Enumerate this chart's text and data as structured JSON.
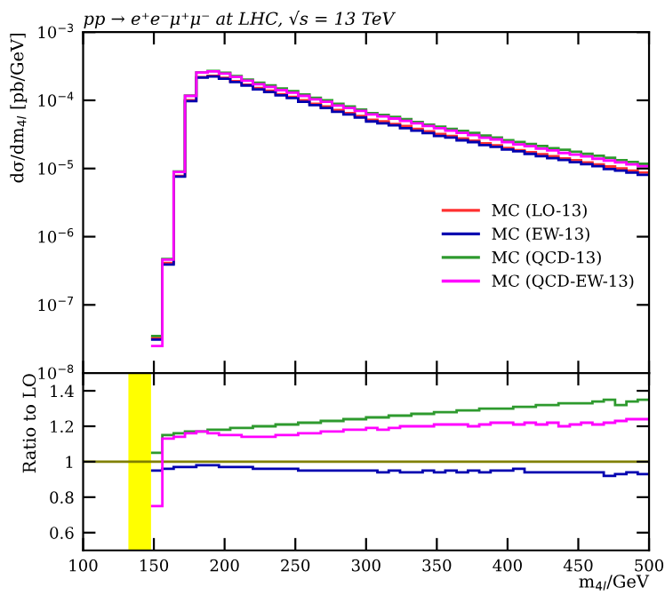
{
  "chart_data": [
    {
      "type": "histogram",
      "title": "pp → e⁺e⁻μ⁺μ⁻ at LHC, √s = 13 TeV",
      "ylabel": "dσ/dm$_{4l}$ [pb/GeV]",
      "bins": [
        148,
        156,
        164,
        172,
        180,
        188,
        196,
        204,
        212,
        220,
        228,
        236,
        244,
        252,
        260,
        268,
        276,
        284,
        292,
        300,
        308,
        316,
        324,
        332,
        340,
        348,
        356,
        364,
        372,
        380,
        388,
        396,
        404,
        412,
        420,
        428,
        436,
        444,
        452,
        460,
        468,
        476,
        484,
        492,
        500
      ],
      "series": [
        {
          "name": "MC (LO-13)",
          "color": "#ff3030",
          "values": [
            3.3e-08,
            4.1e-07,
            7.8e-06,
            0.0001,
            0.000219,
            0.000229,
            0.000214,
            0.000191,
            0.00017,
            0.000151,
            0.000138,
            0.000123,
            0.000112,
            0.0001,
            8.9e-05,
            8.1e-05,
            7.2e-05,
            6.5e-05,
            5.9e-05,
            5.2e-05,
            4.9e-05,
            4.5e-05,
            4.2e-05,
            3.8e-05,
            3.5e-05,
            3.2e-05,
            3e-05,
            2.75e-05,
            2.57e-05,
            2.34e-05,
            2.19e-05,
            2e-05,
            1.86e-05,
            1.74e-05,
            1.62e-05,
            1.51e-05,
            1.41e-05,
            1.32e-05,
            1.23e-05,
            1.15e-05,
            1.07e-05,
            1e-05,
            9.3e-06,
            8.7e-06
          ]
        },
        {
          "name": "MC (EW-13)",
          "color": "#0000b0",
          "values": [
            3.1e-08,
            3.9e-07,
            7.6e-06,
            9.7e-05,
            0.000215,
            0.000224,
            0.000208,
            0.000185,
            0.000165,
            0.000145,
            0.000132,
            0.000118,
            0.000108,
            9.5e-05,
            8.5e-05,
            7.7e-05,
            6.8e-05,
            6.2e-05,
            5.6e-05,
            4.9e-05,
            4.6e-05,
            4.3e-05,
            3.9e-05,
            3.6e-05,
            3.3e-05,
            3e-05,
            2.85e-05,
            2.59e-05,
            2.44e-05,
            2.2e-05,
            2.08e-05,
            1.9e-05,
            1.79e-05,
            1.64e-05,
            1.52e-05,
            1.42e-05,
            1.33e-05,
            1.24e-05,
            1.16e-05,
            1.08e-05,
            9.8e-06,
            9.3e-06,
            8.7e-06,
            8.1e-06
          ]
        },
        {
          "name": "MC (QCD-13)",
          "color": "#2e9a2e",
          "values": [
            3.5e-08,
            4.7e-07,
            9e-06,
            0.000117,
            0.000256,
            0.00027,
            0.000253,
            0.000227,
            0.000202,
            0.000181,
            0.000166,
            0.000149,
            0.000136,
            0.000122,
            0.000109,
            0.0001,
            8.9e-05,
            8.1e-05,
            7.3e-05,
            6.5e-05,
            6.1e-05,
            5.7e-05,
            5.3e-05,
            4.8e-05,
            4.4e-05,
            4.1e-05,
            3.8e-05,
            3.55e-05,
            3.32e-05,
            3.04e-05,
            2.85e-05,
            2.6e-05,
            2.44e-05,
            2.28e-05,
            2.14e-05,
            1.99e-05,
            1.88e-05,
            1.76e-05,
            1.64e-05,
            1.54e-05,
            1.44e-05,
            1.32e-05,
            1.25e-05,
            1.17e-05
          ]
        },
        {
          "name": "MC (QCD-EW-13)",
          "color": "#ff00ff",
          "values": [
            2.5e-08,
            4.6e-07,
            8.9e-06,
            0.000116,
            0.000256,
            0.000266,
            0.000246,
            0.00022,
            0.000194,
            0.000172,
            0.000157,
            0.000141,
            0.000129,
            0.000116,
            0.000103,
            9.5e-05,
            8.4e-05,
            7.7e-05,
            7e-05,
            6.2e-05,
            5.8e-05,
            5.4e-05,
            5e-05,
            4.6e-05,
            4.2e-05,
            3.9e-05,
            3.6e-05,
            3.33e-05,
            3.08e-05,
            2.83e-05,
            2.67e-05,
            2.44e-05,
            2.25e-05,
            2.12e-05,
            1.96e-05,
            1.84e-05,
            1.69e-05,
            1.6e-05,
            1.5e-05,
            1.39e-05,
            1.31e-05,
            1.23e-05,
            1.15e-05,
            1.08e-05
          ]
        }
      ],
      "log": "y",
      "xlim": [
        100,
        500
      ],
      "ylim": [
        1e-08,
        0.001
      ],
      "xticks": [
        100,
        150,
        200,
        250,
        300,
        350,
        400,
        450,
        500
      ],
      "yticks": [
        {
          "value": 1e-08,
          "label": "10$^{−8}$"
        },
        {
          "value": 1e-07,
          "label": "10$^{−7}$"
        },
        {
          "value": 1e-06,
          "label": "10$^{−6}$"
        },
        {
          "value": 1e-05,
          "label": "10$^{−5}$"
        },
        {
          "value": 0.0001,
          "label": "10$^{−4}$"
        },
        {
          "value": 0.001,
          "label": "10$^{−3}$"
        }
      ],
      "tick_labels": "y",
      "legend": "right"
    },
    {
      "type": "histogram",
      "xlabel": "m$_{4l}$/GeV",
      "ylabel": "Ratio to LO",
      "bins": [
        148,
        156,
        164,
        172,
        180,
        188,
        196,
        204,
        212,
        220,
        228,
        236,
        244,
        252,
        260,
        268,
        276,
        284,
        292,
        300,
        308,
        316,
        324,
        332,
        340,
        348,
        356,
        364,
        372,
        380,
        388,
        396,
        404,
        412,
        420,
        428,
        436,
        444,
        452,
        460,
        468,
        476,
        484,
        492,
        500
      ],
      "series": [
        {
          "color": "#0000b0",
          "values": [
            0.95,
            0.96,
            0.97,
            0.97,
            0.98,
            0.98,
            0.97,
            0.97,
            0.97,
            0.96,
            0.96,
            0.96,
            0.96,
            0.95,
            0.95,
            0.95,
            0.95,
            0.95,
            0.95,
            0.95,
            0.94,
            0.95,
            0.94,
            0.94,
            0.95,
            0.94,
            0.95,
            0.94,
            0.95,
            0.94,
            0.95,
            0.95,
            0.96,
            0.94,
            0.94,
            0.94,
            0.94,
            0.94,
            0.94,
            0.94,
            0.92,
            0.93,
            0.94,
            0.93
          ]
        },
        {
          "color": "#2e9a2e",
          "values": [
            1.05,
            1.15,
            1.16,
            1.17,
            1.17,
            1.18,
            1.18,
            1.19,
            1.19,
            1.2,
            1.2,
            1.21,
            1.21,
            1.22,
            1.22,
            1.23,
            1.23,
            1.24,
            1.24,
            1.25,
            1.25,
            1.26,
            1.26,
            1.27,
            1.27,
            1.28,
            1.28,
            1.29,
            1.29,
            1.3,
            1.3,
            1.3,
            1.31,
            1.31,
            1.32,
            1.32,
            1.33,
            1.33,
            1.33,
            1.34,
            1.35,
            1.32,
            1.34,
            1.35
          ]
        },
        {
          "color": "#ff00ff",
          "values": [
            0.75,
            1.13,
            1.14,
            1.16,
            1.17,
            1.16,
            1.15,
            1.15,
            1.14,
            1.14,
            1.14,
            1.15,
            1.15,
            1.16,
            1.16,
            1.17,
            1.17,
            1.18,
            1.18,
            1.19,
            1.18,
            1.19,
            1.2,
            1.2,
            1.2,
            1.21,
            1.21,
            1.21,
            1.2,
            1.21,
            1.22,
            1.22,
            1.21,
            1.22,
            1.21,
            1.22,
            1.2,
            1.21,
            1.22,
            1.21,
            1.22,
            1.23,
            1.24,
            1.24
          ]
        }
      ],
      "xlim": [
        100,
        500
      ],
      "ylim": [
        0.5,
        1.5
      ],
      "xticks": [
        100,
        150,
        200,
        250,
        300,
        350,
        400,
        450,
        500
      ],
      "yticks": [
        0.6,
        0.8,
        1,
        1.2,
        1.4
      ],
      "ref_lines": [
        {
          "axis": "y",
          "value": 1,
          "color": "#808000"
        }
      ],
      "bands": [
        {
          "axis": "x",
          "from": 132,
          "to": 148,
          "color": "#ffff00"
        }
      ]
    }
  ]
}
